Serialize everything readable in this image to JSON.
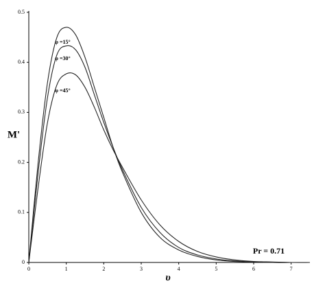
{
  "chart_data": {
    "type": "line",
    "y_label": "M'",
    "x_label": "υ",
    "annotation": "Pr = 0.71",
    "x": [
      0,
      0.25,
      0.5,
      0.75,
      1,
      1.25,
      1.5,
      1.75,
      2,
      2.25,
      2.5,
      3,
      3.5,
      4,
      4.5,
      5,
      5.5,
      6,
      6.5,
      7,
      7.5
    ],
    "series": [
      {
        "name": "φ =15°",
        "color": "#222222",
        "values": [
          0,
          0.2,
          0.36,
          0.45,
          0.47,
          0.455,
          0.41,
          0.35,
          0.29,
          0.23,
          0.18,
          0.1,
          0.05,
          0.025,
          0.012,
          0.005,
          0.002,
          0.001,
          0,
          0,
          0
        ]
      },
      {
        "name": "φ =30°",
        "color": "#222222",
        "values": [
          0,
          0.18,
          0.33,
          0.415,
          0.433,
          0.425,
          0.39,
          0.335,
          0.28,
          0.23,
          0.185,
          0.11,
          0.06,
          0.03,
          0.015,
          0.007,
          0.003,
          0.001,
          0,
          0,
          0
        ]
      },
      {
        "name": "φ =45°",
        "color": "#222222",
        "values": [
          0,
          0.15,
          0.28,
          0.355,
          0.377,
          0.375,
          0.35,
          0.31,
          0.265,
          0.225,
          0.19,
          0.125,
          0.075,
          0.042,
          0.022,
          0.011,
          0.005,
          0.002,
          0.001,
          0,
          0
        ]
      }
    ],
    "xlim": [
      0,
      7.5
    ],
    "xticks": [
      0,
      1,
      2,
      3,
      4,
      5,
      6,
      7
    ],
    "ylim": [
      0,
      0.5
    ],
    "yticks": [
      0,
      0.1,
      0.2,
      0.3,
      0.4,
      0.5
    ],
    "grid": false
  }
}
